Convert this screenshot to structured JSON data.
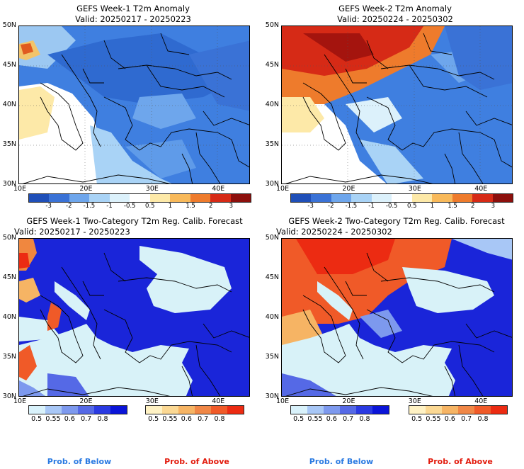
{
  "panels": [
    {
      "title": "GEFS Week-1 T2m Anomaly",
      "valid": "Valid: 20250217 - 20250223"
    },
    {
      "title": "GEFS Week-2 T2m Anomaly",
      "valid": "Valid: 20250224 - 20250302"
    },
    {
      "title": "GEFS Week-1 Two-Category T2m Reg. Calib. Forecast",
      "valid": "Valid: 20250217 - 20250223"
    },
    {
      "title": "GEFS Week-2 Two-Category T2m Reg. Calib. Forecast",
      "valid": "Valid: 20250224 - 20250302"
    }
  ],
  "lat_labels": [
    "50N",
    "45N",
    "40N",
    "35N",
    "30N"
  ],
  "lon_labels": [
    "10E",
    "20E",
    "30E",
    "40E"
  ],
  "anomaly_colorbar": {
    "ticks": [
      "-3",
      "-2",
      "-1.5",
      "-1",
      "-0.5",
      "0.5",
      "1",
      "1.5",
      "2",
      "3"
    ],
    "colors": [
      "#1f4fb8",
      "#3a72d6",
      "#6ea6ec",
      "#a9d3f6",
      "#dcf1fb",
      "#ffffff",
      "#fde9a8",
      "#f8b95a",
      "#ee7b2c",
      "#d62a16",
      "#8c0f0c"
    ]
  },
  "prob_below_colorbar": {
    "ticks": [
      "0.5",
      "0.55",
      "0.6",
      "0.7",
      "0.8"
    ],
    "colors": [
      "#d9f2fb",
      "#a8c7f6",
      "#7d99ee",
      "#5569e6",
      "#2a3ae2",
      "#0a14d8"
    ]
  },
  "prob_above_colorbar": {
    "ticks": [
      "0.5",
      "0.55",
      "0.6",
      "0.7",
      "0.8"
    ],
    "colors": [
      "#fff2c4",
      "#fbd893",
      "#f6b464",
      "#f08746",
      "#f05a28",
      "#ec2b12"
    ]
  },
  "footer": {
    "below_label": "Prob. of Below",
    "above_label": "Prob. of Above",
    "below_color": "#2a7ae2",
    "above_color": "#e21a0c"
  },
  "colors": {
    "sea_light": "#d8f2f8",
    "prob_blue": "#1a25d9",
    "anom_blue": "#3f7fe0"
  }
}
